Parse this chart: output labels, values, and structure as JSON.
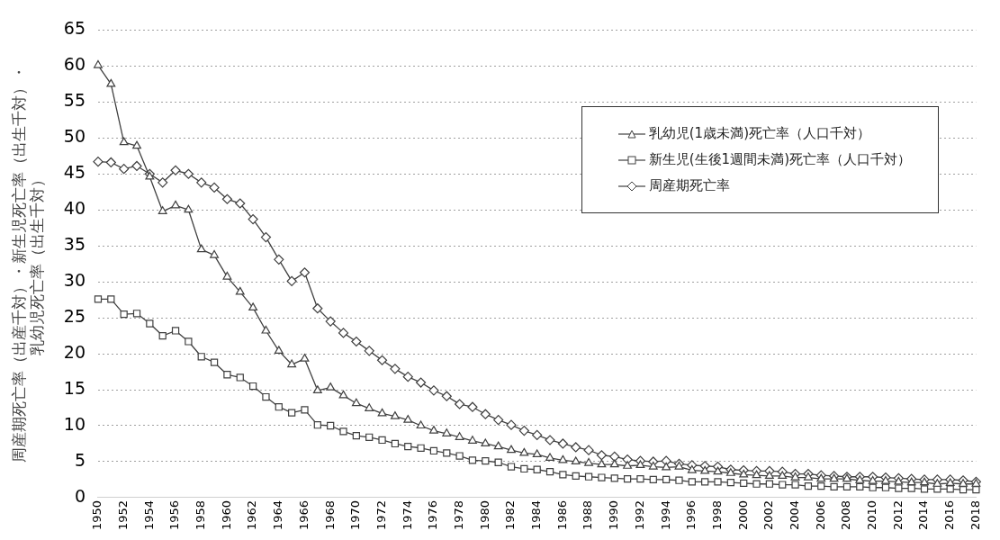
{
  "chart_data": {
    "type": "line",
    "ylabel": "周産期死亡率（出産千対）・新生児死亡率（出生千対）・乳幼児死亡率（出生千対）",
    "categories": [
      "1950",
      null,
      "1952",
      null,
      "1954",
      null,
      "1956",
      null,
      "1958",
      null,
      "1960",
      null,
      "1962",
      null,
      "1964",
      null,
      "1966",
      null,
      "1968",
      null,
      "1970",
      null,
      "1972",
      null,
      "1974",
      null,
      "1976",
      null,
      "1978",
      null,
      "1980",
      null,
      "1982",
      null,
      "1984",
      null,
      "1986",
      null,
      "1988",
      null,
      "1990",
      null,
      "1992",
      null,
      "1994",
      null,
      "1996",
      null,
      "1998",
      null,
      "2000",
      null,
      "2002",
      null,
      "2004",
      null,
      "2006",
      null,
      "2008",
      null,
      "2010",
      null,
      "2012",
      null,
      "2014",
      null,
      "2016",
      null,
      "2018"
    ],
    "series": [
      {
        "name": "乳幼児(1歳未満)死亡率（人口千対）",
        "color": "#404040",
        "marker": "triangle",
        "values": [
          60.1,
          57.5,
          49.4,
          48.9,
          44.6,
          39.8,
          40.6,
          40.0,
          34.5,
          33.7,
          30.7,
          28.6,
          26.4,
          23.2,
          20.4,
          18.5,
          19.3,
          14.9,
          15.3,
          14.2,
          13.1,
          12.4,
          11.7,
          11.3,
          10.8,
          10.0,
          9.3,
          8.9,
          8.4,
          7.9,
          7.5,
          7.1,
          6.6,
          6.2,
          6.0,
          5.5,
          5.2,
          5.0,
          4.8,
          4.6,
          4.6,
          4.4,
          4.5,
          4.3,
          4.2,
          4.3,
          3.8,
          3.7,
          3.6,
          3.4,
          3.2,
          3.1,
          3.0,
          3.0,
          2.8,
          2.8,
          2.6,
          2.6,
          2.6,
          2.4,
          2.3,
          2.3,
          2.2,
          2.1,
          2.1,
          1.9,
          2.0,
          1.9,
          1.9
        ]
      },
      {
        "name": "新生児(生後1週間未満)死亡率（人口千対）",
        "color": "#404040",
        "marker": "square",
        "values": [
          27.6,
          27.6,
          25.5,
          25.6,
          24.2,
          22.5,
          23.2,
          21.7,
          19.6,
          18.8,
          17.1,
          16.7,
          15.5,
          14.0,
          12.6,
          11.8,
          12.2,
          10.1,
          10.0,
          9.2,
          8.6,
          8.4,
          8.0,
          7.5,
          7.1,
          6.9,
          6.5,
          6.2,
          5.8,
          5.2,
          5.1,
          4.9,
          4.3,
          4.0,
          3.9,
          3.6,
          3.2,
          3.0,
          2.9,
          2.8,
          2.7,
          2.6,
          2.6,
          2.5,
          2.5,
          2.4,
          2.2,
          2.2,
          2.2,
          2.1,
          2.0,
          1.9,
          1.9,
          1.8,
          1.8,
          1.6,
          1.6,
          1.5,
          1.5,
          1.5,
          1.4,
          1.4,
          1.3,
          1.3,
          1.2,
          1.2,
          1.2,
          1.1,
          1.1
        ]
      },
      {
        "name": "周産期死亡率",
        "color": "#404040",
        "marker": "diamond",
        "values": [
          46.7,
          46.6,
          45.7,
          46.1,
          45.0,
          43.8,
          45.5,
          45.0,
          43.8,
          43.1,
          41.5,
          40.9,
          38.7,
          36.2,
          33.1,
          30.1,
          31.3,
          26.3,
          24.5,
          22.9,
          21.7,
          20.4,
          19.1,
          17.9,
          16.8,
          16.0,
          14.9,
          14.1,
          13.0,
          12.6,
          11.6,
          10.8,
          10.1,
          9.3,
          8.7,
          8.0,
          7.5,
          7.0,
          6.6,
          5.9,
          5.7,
          5.3,
          5.1,
          5.0,
          5.1,
          4.7,
          4.5,
          4.4,
          4.3,
          3.9,
          3.8,
          3.7,
          3.7,
          3.6,
          3.3,
          3.3,
          3.1,
          3.0,
          2.9,
          2.9,
          2.9,
          2.8,
          2.7,
          2.6,
          2.5,
          2.5,
          2.5,
          2.4,
          2.2
        ]
      }
    ],
    "ylim": [
      0,
      65
    ],
    "yticks": [
      0,
      5,
      10,
      15,
      20,
      25,
      30,
      35,
      40,
      45,
      50,
      55,
      60,
      65
    ],
    "grid": "y",
    "legend": "top right"
  }
}
